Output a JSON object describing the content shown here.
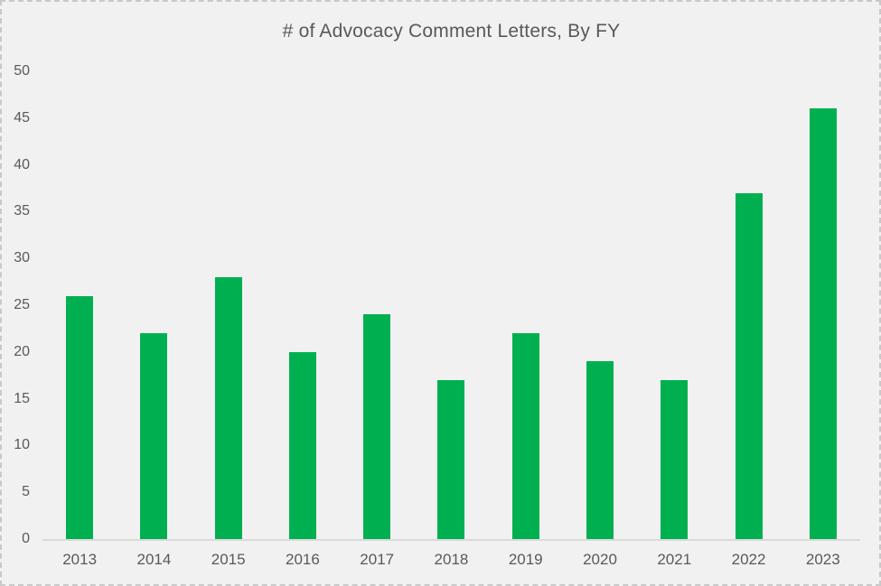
{
  "window": {
    "background_color": "#f1f1f2",
    "border_color": "#c9c9c9"
  },
  "chart_data": {
    "type": "bar",
    "title": "# of Advocacy Comment Letters, By FY",
    "categories": [
      "2013",
      "2014",
      "2015",
      "2016",
      "2017",
      "2018",
      "2019",
      "2020",
      "2021",
      "2022",
      "2023"
    ],
    "values": [
      26,
      22,
      28,
      20,
      24,
      17,
      22,
      19,
      17,
      37,
      46
    ],
    "xlabel": "",
    "ylabel": "",
    "ylim": [
      0,
      50
    ],
    "ytick_step": 5,
    "grid": false,
    "legend_position": "none",
    "bar_color": "#00B050",
    "text_color": "#595959",
    "axis_line_color": "#d9d9d9"
  }
}
